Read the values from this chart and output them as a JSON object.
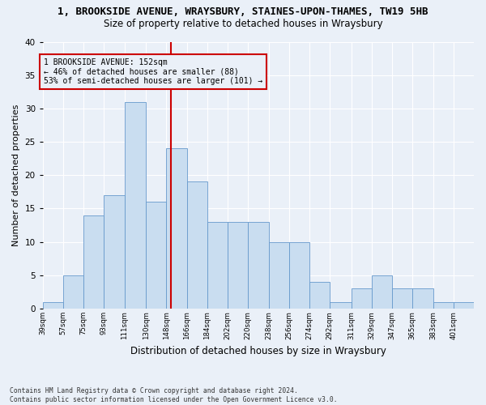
{
  "title": "1, BROOKSIDE AVENUE, WRAYSBURY, STAINES-UPON-THAMES, TW19 5HB",
  "subtitle": "Size of property relative to detached houses in Wraysbury",
  "xlabel": "Distribution of detached houses by size in Wraysbury",
  "ylabel": "Number of detached properties",
  "bar_labels": [
    "39sqm",
    "57sqm",
    "75sqm",
    "93sqm",
    "111sqm",
    "130sqm",
    "148sqm",
    "166sqm",
    "184sqm",
    "202sqm",
    "220sqm",
    "238sqm",
    "256sqm",
    "274sqm",
    "292sqm",
    "311sqm",
    "329sqm",
    "347sqm",
    "365sqm",
    "383sqm",
    "401sqm"
  ],
  "bar_values": [
    1,
    5,
    14,
    17,
    31,
    16,
    24,
    19,
    13,
    13,
    13,
    10,
    10,
    4,
    1,
    3,
    5,
    3,
    3,
    1,
    1
  ],
  "bar_color": "#c9ddf0",
  "bar_edge_color": "#6699cc",
  "vline_color": "#cc0000",
  "annotation_text": "1 BROOKSIDE AVENUE: 152sqm\n← 46% of detached houses are smaller (88)\n53% of semi-detached houses are larger (101) →",
  "annotation_box_color": "#cc0000",
  "ylim": [
    0,
    40
  ],
  "yticks": [
    0,
    5,
    10,
    15,
    20,
    25,
    30,
    35,
    40
  ],
  "footer_text": "Contains HM Land Registry data © Crown copyright and database right 2024.\nContains public sector information licensed under the Open Government Licence v3.0.",
  "bg_color": "#eaf0f8",
  "grid_color": "#ffffff",
  "title_fontsize": 9,
  "subtitle_fontsize": 8.5,
  "xlabel_fontsize": 8.5,
  "ylabel_fontsize": 8
}
